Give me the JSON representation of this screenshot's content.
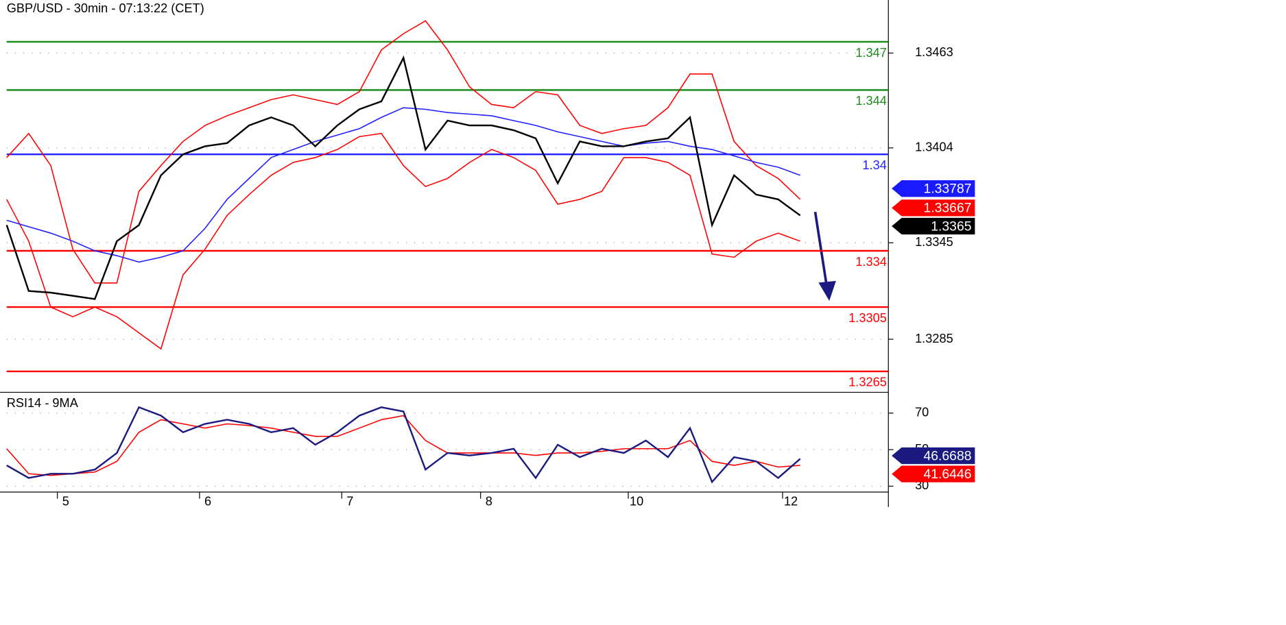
{
  "chart_data": [
    {
      "type": "line",
      "title": "GBP/USD - 30min - 07:13:22 (CET)",
      "x": [
        0,
        1,
        2,
        3,
        4,
        5,
        6,
        7,
        8,
        9,
        10,
        11,
        12,
        13,
        14,
        15,
        16,
        17,
        18,
        19,
        20,
        21,
        22,
        23,
        24,
        25,
        26,
        27,
        28,
        29,
        30,
        31,
        32,
        33,
        34,
        35,
        36
      ],
      "xlim": [
        0,
        40
      ],
      "ylim": [
        1.3252,
        1.3496
      ],
      "yticks": [
        1.3285,
        1.3345,
        1.3404,
        1.3463
      ],
      "grid": true,
      "series": [
        {
          "color": "#ff0000",
          "values": [
            1.3398,
            1.3413,
            1.3393,
            1.3341,
            1.332,
            1.332,
            1.3377,
            1.3393,
            1.3408,
            1.3418,
            1.3424,
            1.3429,
            1.3434,
            1.3437,
            1.3434,
            1.3431,
            1.3439,
            1.3465,
            1.3475,
            1.3483,
            1.3465,
            1.3442,
            1.3431,
            1.3429,
            1.3439,
            1.3437,
            1.3418,
            1.3413,
            1.3416,
            1.3418,
            1.3429,
            1.345,
            1.345,
            1.3408,
            1.3393,
            1.3385,
            1.3372
          ]
        },
        {
          "color": "#ff0000",
          "values": [
            1.3372,
            1.3346,
            1.3305,
            1.3299,
            1.3305,
            1.3299,
            1.3289,
            1.3279,
            1.3325,
            1.3341,
            1.3362,
            1.3375,
            1.3387,
            1.3395,
            1.3398,
            1.3403,
            1.3411,
            1.3413,
            1.3393,
            1.338,
            1.3385,
            1.3395,
            1.3403,
            1.3398,
            1.339,
            1.3369,
            1.3372,
            1.3377,
            1.3398,
            1.3398,
            1.3395,
            1.3387,
            1.3338,
            1.3336,
            1.3346,
            1.3351,
            1.3346
          ]
        },
        {
          "color": "#1f1fff",
          "values": [
            1.3359,
            1.3355,
            1.3351,
            1.3346,
            1.334,
            1.3337,
            1.3333,
            1.3336,
            1.334,
            1.3354,
            1.3372,
            1.3385,
            1.3398,
            1.3403,
            1.3408,
            1.3412,
            1.3416,
            1.3423,
            1.3429,
            1.3428,
            1.3426,
            1.3425,
            1.3424,
            1.3421,
            1.3418,
            1.3414,
            1.3411,
            1.3408,
            1.3405,
            1.3407,
            1.3408,
            1.3405,
            1.3403,
            1.3399,
            1.3395,
            1.3392,
            1.3387
          ]
        },
        {
          "color": "#000000",
          "values": [
            1.3356,
            1.3315,
            1.3314,
            1.3312,
            1.331,
            1.3346,
            1.3356,
            1.3387,
            1.34,
            1.3405,
            1.3407,
            1.3418,
            1.3423,
            1.3418,
            1.3405,
            1.3418,
            1.3428,
            1.3433,
            1.346,
            1.3403,
            1.3421,
            1.3418,
            1.3418,
            1.3415,
            1.341,
            1.3382,
            1.3408,
            1.3405,
            1.3405,
            1.3408,
            1.341,
            1.3423,
            1.3356,
            1.3387,
            1.3375,
            1.3372,
            1.3362
          ]
        }
      ],
      "levels": [
        {
          "value": 1.347,
          "color": "#1a8c1a"
        },
        {
          "value": 1.344,
          "color": "#1a8c1a"
        },
        {
          "value": 1.34,
          "color": "#1f1fff"
        },
        {
          "value": 1.334,
          "color": "#ff0000"
        },
        {
          "value": 1.3305,
          "color": "#ff0000"
        },
        {
          "value": 1.3265,
          "color": "#ff0000"
        }
      ],
      "price_labels": [
        {
          "value": 1.33787,
          "color": "#1a1aff"
        },
        {
          "value": 1.33667,
          "color": "#ff0000"
        },
        {
          "value": 1.3365,
          "color": "#000000"
        }
      ]
    },
    {
      "type": "line",
      "title": "RSI14 - 9MA",
      "x": [
        0,
        1,
        2,
        3,
        4,
        5,
        6,
        7,
        8,
        9,
        10,
        11,
        12,
        13,
        14,
        15,
        16,
        17,
        18,
        19,
        20,
        21,
        22,
        23,
        24,
        25,
        26,
        27,
        28,
        29,
        30,
        31,
        32,
        33,
        34,
        35,
        36
      ],
      "xlim": [
        0,
        40
      ],
      "xticks": [
        {
          "value": 2.3,
          "label": "5"
        },
        {
          "value": 8.75,
          "label": "6"
        },
        {
          "value": 15.2,
          "label": "7"
        },
        {
          "value": 21.5,
          "label": "8"
        },
        {
          "value": 28.2,
          "label": "10"
        },
        {
          "value": 35.2,
          "label": "12"
        }
      ],
      "ylim": [
        26.8,
        81.4
      ],
      "yticks": [
        30,
        50,
        70
      ],
      "grid": true,
      "series": [
        {
          "color": "#ff0000",
          "values": [
            50.5,
            36.8,
            35.9,
            36.8,
            37.7,
            43.6,
            59.5,
            66.4,
            64.1,
            61.8,
            64.1,
            63.2,
            61.8,
            59.5,
            57.3,
            57.3,
            61.8,
            66.4,
            68.6,
            55.0,
            48.2,
            48.2,
            48.2,
            48.2,
            46.8,
            48.2,
            48.2,
            49.1,
            50.5,
            50.5,
            50.5,
            55.0,
            43.6,
            41.4,
            43.6,
            40.5,
            41.4
          ]
        },
        {
          "color": "#1a1a80",
          "values": [
            41.4,
            34.5,
            36.8,
            36.8,
            39.1,
            48.2,
            73.2,
            68.6,
            59.5,
            64.1,
            66.4,
            64.1,
            59.5,
            61.8,
            52.7,
            59.5,
            68.6,
            73.2,
            70.9,
            39.1,
            48.2,
            46.8,
            48.2,
            50.5,
            34.5,
            52.7,
            45.9,
            50.5,
            48.2,
            55.0,
            45.9,
            61.8,
            32.3,
            45.9,
            43.6,
            34.5,
            45.0
          ]
        }
      ],
      "price_labels": [
        {
          "value": 46.6688,
          "color": "#1a1a80"
        },
        {
          "value": 41.6446,
          "color": "#ff0000"
        }
      ]
    }
  ]
}
